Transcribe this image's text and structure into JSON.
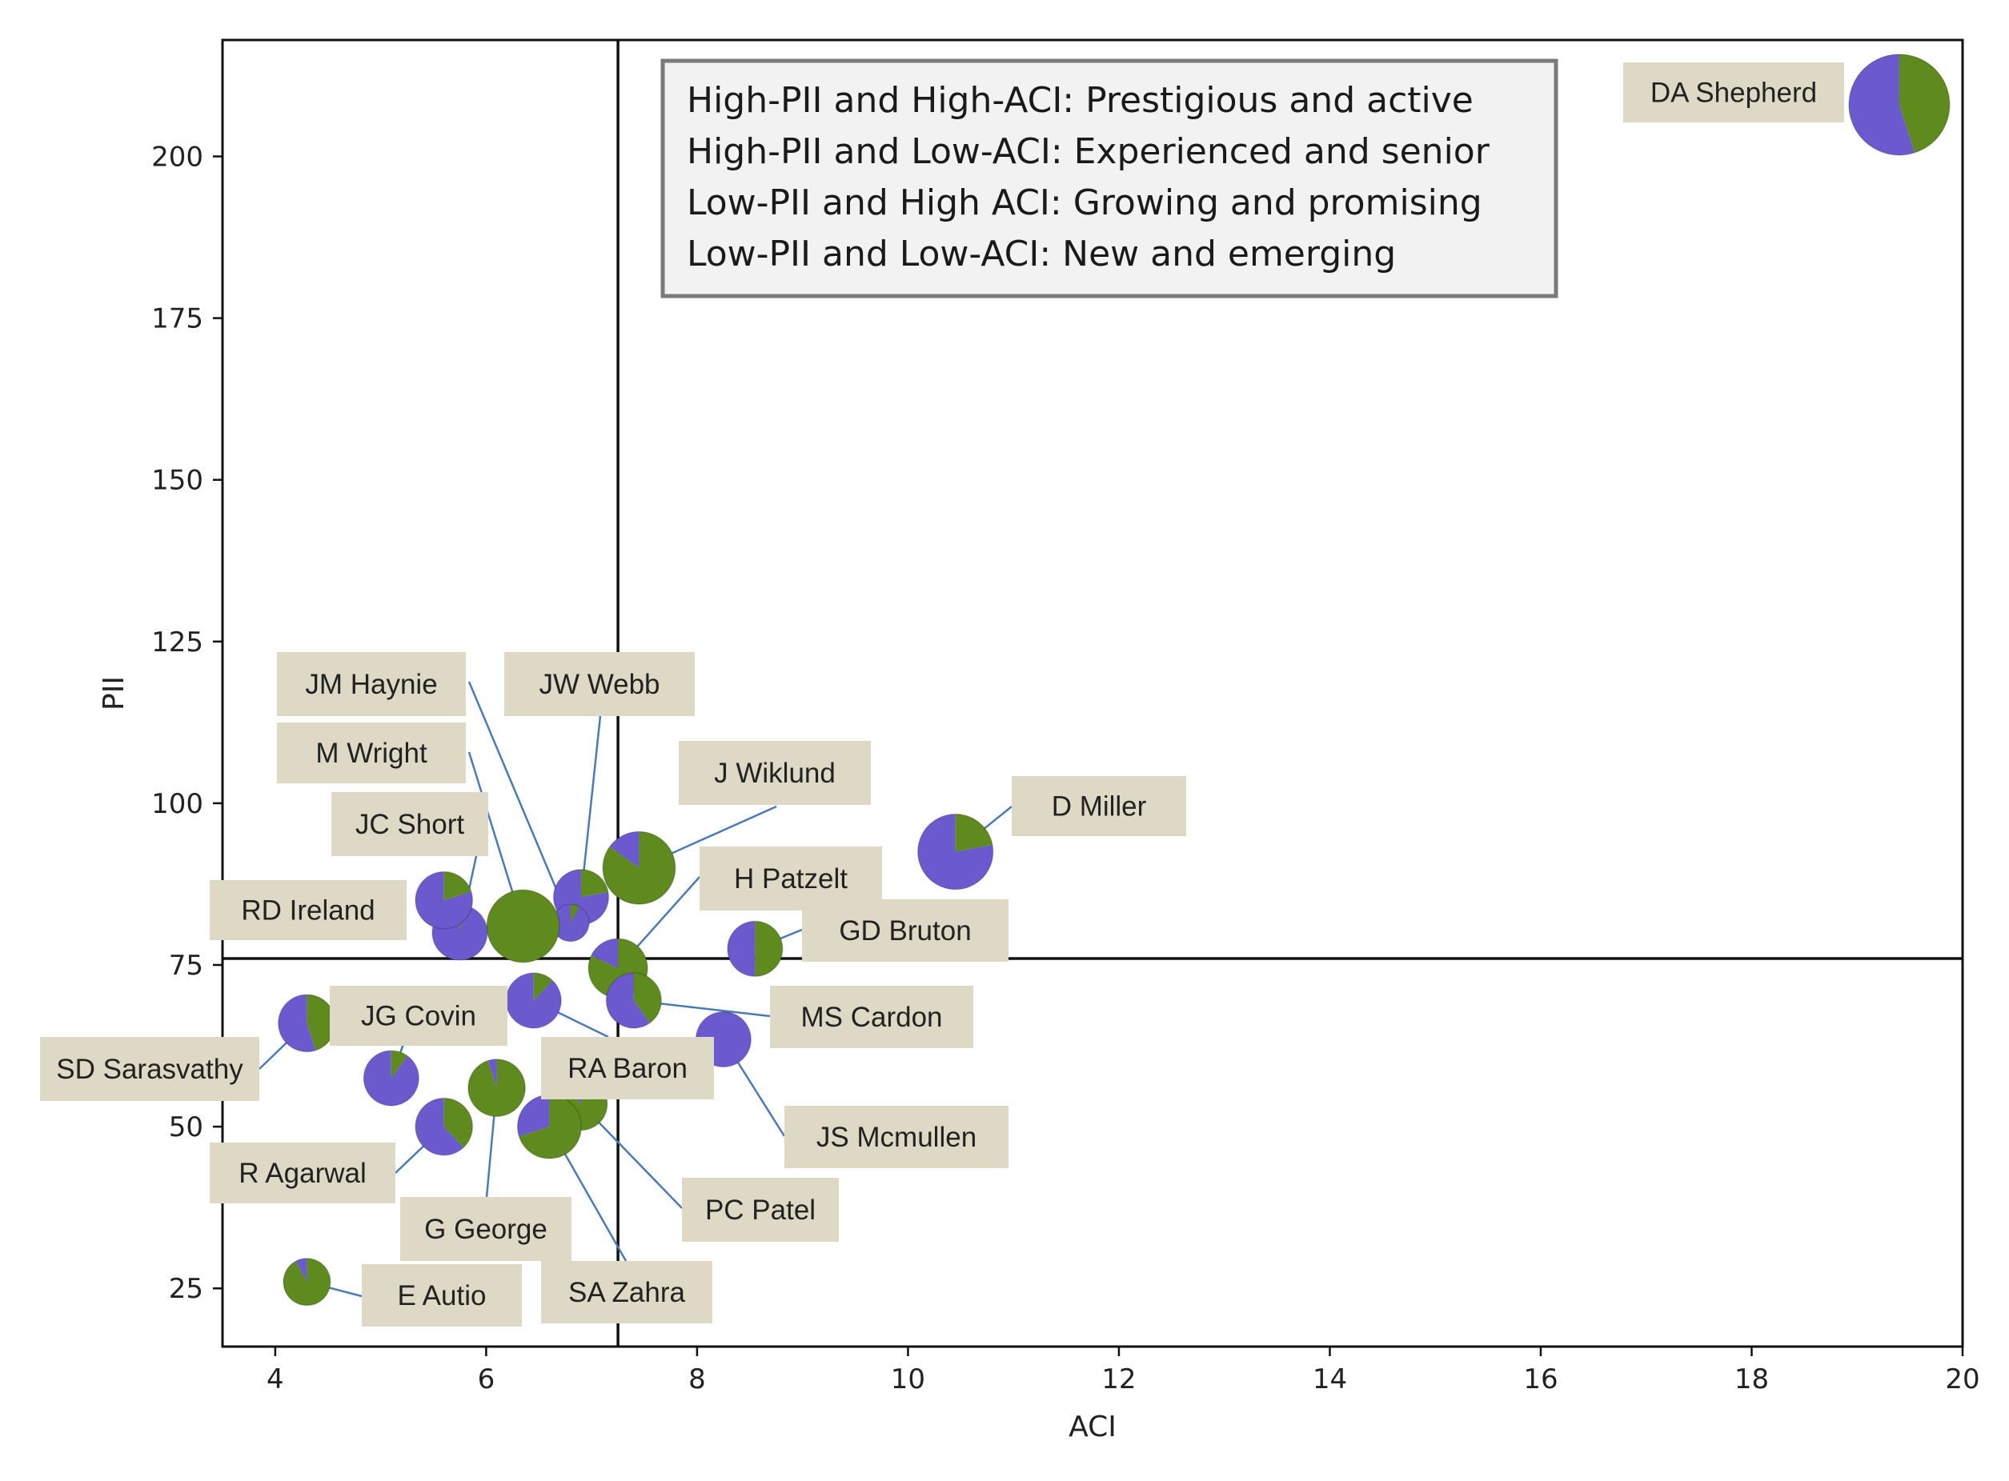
{
  "chart_data": {
    "type": "scatter",
    "subtype": "pie-bubble",
    "title": "",
    "xlabel": "ACI",
    "ylabel": "PII",
    "xlim": [
      3.5,
      20
    ],
    "ylim": [
      16,
      218
    ],
    "xticks": [
      4,
      6,
      8,
      10,
      12,
      14,
      16,
      18,
      20
    ],
    "yticks": [
      25,
      50,
      75,
      100,
      125,
      150,
      175,
      200
    ],
    "thresholds": {
      "x": 7.25,
      "y": 76
    },
    "slice_colors": {
      "primary": "#6a5acd",
      "secondary": "#5e8a1e"
    },
    "label_box_color": "#ddd9c4",
    "legend": [
      "High-PII and High-ACI: Prestigious and active",
      "High-PII and Low-ACI: Experienced and senior",
      "Low-PII and High ACI: Growing and promising",
      "Low-PII and Low-ACI: New and emerging"
    ],
    "points": [
      {
        "name": "DA Shepherd",
        "x": 19.4,
        "y": 208,
        "size": 1.5,
        "share": 0.55
      },
      {
        "name": "D Miller",
        "x": 10.45,
        "y": 92.5,
        "size": 1.12,
        "share": 0.78
      },
      {
        "name": "J Wiklund",
        "x": 7.45,
        "y": 90,
        "size": 1.08,
        "share": 0.15
      },
      {
        "name": "JW Webb",
        "x": 6.9,
        "y": 85.5,
        "size": 0.82,
        "share": 0.78
      },
      {
        "name": "JM Haynie",
        "x": 6.8,
        "y": 81.5,
        "size": 0.55,
        "share": 0.92
      },
      {
        "name": "M Wright",
        "x": 6.35,
        "y": 81,
        "size": 1.08,
        "share": 0.0
      },
      {
        "name": "JC Short",
        "x": 5.75,
        "y": 80,
        "size": 0.82,
        "share": 0.97
      },
      {
        "name": "RD Ireland",
        "x": 5.6,
        "y": 85,
        "size": 0.85,
        "share": 0.8
      },
      {
        "name": "H Patzelt",
        "x": 7.25,
        "y": 74.5,
        "size": 0.88,
        "share": 0.18
      },
      {
        "name": "GD Bruton",
        "x": 8.55,
        "y": 77.5,
        "size": 0.82,
        "share": 0.5
      },
      {
        "name": "MS Cardon",
        "x": 7.4,
        "y": 69.5,
        "size": 0.82,
        "share": 0.6
      },
      {
        "name": "RA Baron",
        "x": 6.45,
        "y": 69.5,
        "size": 0.82,
        "share": 0.88
      },
      {
        "name": "JS Mcmullen",
        "x": 8.25,
        "y": 63.5,
        "size": 0.82,
        "share": 1.0
      },
      {
        "name": "JG Covin",
        "x": 5.1,
        "y": 57.5,
        "size": 0.82,
        "share": 0.9
      },
      {
        "name": "SD Sarasvathy",
        "x": 4.3,
        "y": 66,
        "size": 0.85,
        "share": 0.55
      },
      {
        "name": "G George",
        "x": 6.1,
        "y": 56,
        "size": 0.85,
        "share": 0.05
      },
      {
        "name": "PC Patel",
        "x": 6.9,
        "y": 53.5,
        "size": 0.78,
        "share": 0.12
      },
      {
        "name": "SA Zahra",
        "x": 6.6,
        "y": 50,
        "size": 0.95,
        "share": 0.3
      },
      {
        "name": "R Agarwal",
        "x": 5.6,
        "y": 50,
        "size": 0.85,
        "share": 0.62
      },
      {
        "name": "E Autio",
        "x": 4.3,
        "y": 26,
        "size": 0.7,
        "share": 0.08
      }
    ]
  }
}
